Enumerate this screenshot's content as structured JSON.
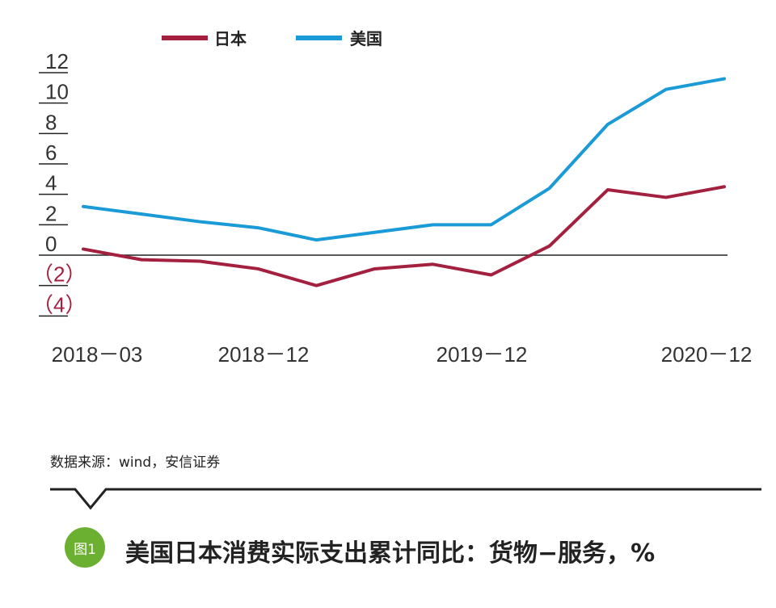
{
  "chart_data": {
    "type": "line",
    "x": [
      "2018-03",
      "2018-06",
      "2018-09",
      "2018-12",
      "2019-03",
      "2019-06",
      "2019-09",
      "2019-12",
      "2020-03",
      "2020-06",
      "2020-09",
      "2020-12"
    ],
    "x_tick_labels": [
      "2018－03",
      "2018－12",
      "2019－12",
      "2020－12"
    ],
    "x_tick_positions": [
      "2018-03",
      "2018-12",
      "2019-12",
      "2020-12"
    ],
    "y_tick_labels": [
      "12",
      "10",
      "8",
      "6",
      "4",
      "2",
      "0",
      "（2）",
      "（4）"
    ],
    "y_tick_values": [
      12,
      10,
      8,
      6,
      4,
      2,
      0,
      -2,
      -4
    ],
    "ylim": [
      -5,
      13
    ],
    "series": [
      {
        "name": "日本",
        "color": "#a3203f",
        "values": [
          0.4,
          -0.3,
          -0.4,
          -0.9,
          -2.0,
          -0.9,
          -0.6,
          -1.3,
          0.6,
          4.3,
          3.8,
          4.5
        ]
      },
      {
        "name": "美国",
        "color": "#1a9ad6",
        "values": [
          3.2,
          2.7,
          2.2,
          1.8,
          1.0,
          1.5,
          2.0,
          2.0,
          4.4,
          8.6,
          10.9,
          11.6
        ]
      }
    ],
    "zero_line": true
  },
  "source": "数据来源：wind，安信证券",
  "caption": {
    "badge": "图1",
    "title": "美国日本消费实际支出累计同比：货物−服务，%"
  }
}
